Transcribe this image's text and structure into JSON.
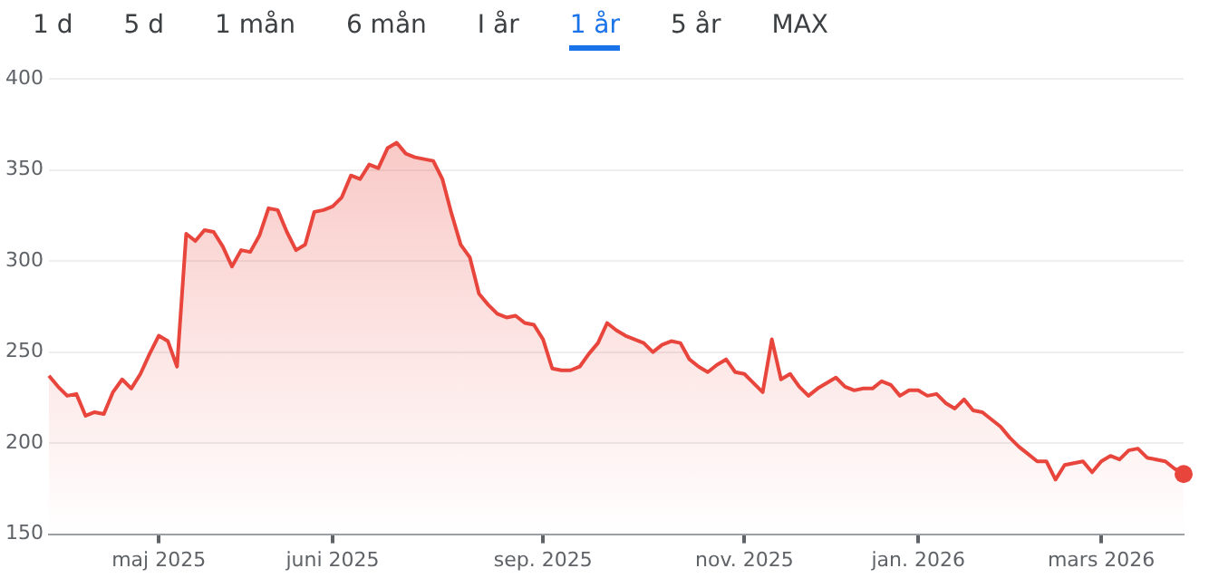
{
  "chart_data": {
    "type": "area",
    "annotations": [
      "1 d",
      "5 d",
      "1 mån",
      "6 mån",
      "I år",
      "1 år",
      "5 år",
      "MAX"
    ],
    "categories": [
      null,
      null,
      null,
      null,
      null,
      null,
      null,
      null,
      null,
      null,
      null,
      null,
      "maj 2025",
      null,
      null,
      null,
      null,
      null,
      null,
      null,
      null,
      null,
      null,
      null,
      null,
      null,
      null,
      null,
      null,
      null,
      null,
      "juni 2025",
      null,
      null,
      null,
      null,
      null,
      null,
      null,
      null,
      null,
      null,
      null,
      null,
      null,
      null,
      null,
      null,
      null,
      null,
      null,
      null,
      null,
      null,
      "sep. 2025",
      null,
      null,
      null,
      null,
      null,
      null,
      null,
      null,
      null,
      null,
      null,
      null,
      null,
      null,
      null,
      null,
      null,
      null,
      null,
      null,
      null,
      "nov. 2025",
      null,
      null,
      null,
      null,
      null,
      null,
      null,
      null,
      null,
      null,
      null,
      null,
      null,
      null,
      null,
      null,
      null,
      null,
      "jan. 2026",
      null,
      null,
      null,
      null,
      null,
      null,
      null,
      null,
      null,
      null,
      null,
      null,
      null,
      null,
      null,
      null,
      null,
      null,
      null,
      "mars 2026",
      null,
      null,
      null,
      null,
      null,
      null,
      null,
      null,
      null
    ],
    "series": [
      {
        "color": "#e8453c",
        "values": [
          237,
          231,
          226,
          227,
          215,
          217,
          216,
          228,
          235,
          230,
          238,
          249,
          259,
          256,
          242,
          315,
          311,
          317,
          316,
          308,
          297,
          306,
          305,
          314,
          329,
          328,
          316,
          306,
          309,
          327,
          328,
          330,
          335,
          347,
          345,
          353,
          351,
          362,
          365,
          359,
          357,
          356,
          355,
          345,
          326,
          309,
          302,
          282,
          276,
          271,
          269,
          270,
          266,
          265,
          257,
          241,
          240,
          240,
          242,
          249,
          255,
          266,
          262,
          259,
          257,
          255,
          250,
          254,
          256,
          255,
          246,
          242,
          239,
          243,
          246,
          239,
          238,
          233,
          228,
          257,
          235,
          238,
          231,
          226,
          230,
          233,
          236,
          231,
          229,
          230,
          230,
          234,
          232,
          226,
          229,
          229,
          226,
          227,
          222,
          219,
          224,
          218,
          217,
          213,
          209,
          203,
          198,
          194,
          190,
          190,
          180,
          188,
          189,
          190,
          184,
          190,
          193,
          191,
          196,
          197,
          192,
          191,
          190,
          186,
          183
        ]
      }
    ],
    "ylim": [
      150,
      400
    ],
    "yticks": [
      150,
      200,
      250,
      300,
      350,
      400
    ],
    "grid": "y",
    "legend": false
  }
}
